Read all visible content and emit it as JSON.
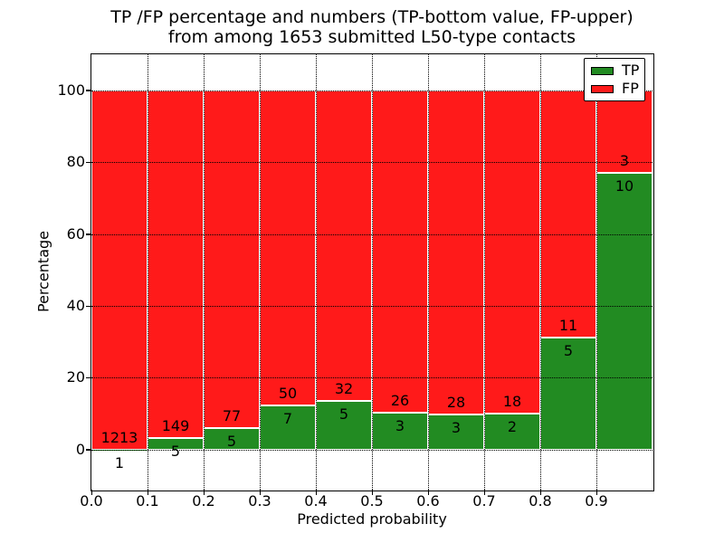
{
  "figure": {
    "title_line1": "TP /FP percentage and numbers (TP-bottom value, FP-upper)",
    "title_line2": "from among 1653 submitted L50-type contacts"
  },
  "chart_data": {
    "type": "bar",
    "subtype": "stacked-percentage",
    "title": "TP /FP percentage and numbers (TP-bottom value, FP-upper)\nfrom among 1653 submitted L50-type contacts",
    "xlabel": "Predicted probability",
    "ylabel": "Percentage",
    "xlim": [
      0.0,
      1.0
    ],
    "ylim": [
      -11.1,
      110
    ],
    "grid": true,
    "xtick_labels": [
      "0.0",
      "0.1",
      "0.2",
      "0.3",
      "0.4",
      "0.5",
      "0.6",
      "0.7",
      "0.8",
      "0.9"
    ],
    "ytick_values": [
      0,
      20,
      40,
      60,
      80,
      100
    ],
    "bin_edges": [
      0.0,
      0.1,
      0.2,
      0.3,
      0.4,
      0.5,
      0.6,
      0.7,
      0.8,
      0.9,
      1.0
    ],
    "bins": [
      {
        "range": "0.0-0.1",
        "tp": 1,
        "fp": 1213
      },
      {
        "range": "0.1-0.2",
        "tp": 5,
        "fp": 149
      },
      {
        "range": "0.2-0.3",
        "tp": 5,
        "fp": 77
      },
      {
        "range": "0.3-0.4",
        "tp": 7,
        "fp": 50
      },
      {
        "range": "0.4-0.5",
        "tp": 5,
        "fp": 32
      },
      {
        "range": "0.5-0.6",
        "tp": 3,
        "fp": 26
      },
      {
        "range": "0.6-0.7",
        "tp": 3,
        "fp": 28
      },
      {
        "range": "0.7-0.8",
        "tp": 2,
        "fp": 18
      },
      {
        "range": "0.8-0.9",
        "tp": 5,
        "fp": 11
      },
      {
        "range": "0.9-1.0",
        "tp": 10,
        "fp": 3
      }
    ],
    "series": [
      {
        "name": "TP",
        "color": "#228b22",
        "counts": [
          1,
          5,
          5,
          7,
          5,
          3,
          3,
          2,
          5,
          10
        ]
      },
      {
        "name": "FP",
        "color": "#ff1a1a",
        "counts": [
          1213,
          149,
          77,
          50,
          32,
          26,
          28,
          18,
          11,
          3
        ]
      }
    ],
    "legend": {
      "position": "upper right",
      "entries": [
        {
          "label": "TP",
          "color": "#228b22"
        },
        {
          "label": "FP",
          "color": "#ff1a1a"
        }
      ]
    },
    "colors": {
      "tp": "#228b22",
      "fp": "#ff1a1a",
      "bar_edge": "#ffffff",
      "grid": "#000000",
      "background": "#ffffff"
    }
  }
}
